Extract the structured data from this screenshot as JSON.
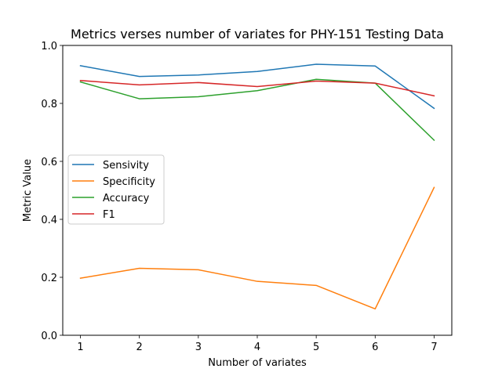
{
  "chart_data": {
    "type": "line",
    "title": "Metrics verses number of variates for PHY-151 Testing Data",
    "xlabel": "Number of variates",
    "ylabel": "Metric Value",
    "x": [
      1,
      2,
      3,
      4,
      5,
      6,
      7
    ],
    "xlim": [
      0.7,
      7.3
    ],
    "ylim": [
      0.0,
      1.0
    ],
    "xticks": [
      1,
      2,
      3,
      4,
      5,
      6,
      7
    ],
    "yticks": [
      0.0,
      0.2,
      0.4,
      0.6,
      0.8,
      1.0
    ],
    "ytick_labels": [
      "0.0",
      "0.2",
      "0.4",
      "0.6",
      "0.8",
      "1.0"
    ],
    "grid": false,
    "legend_position": "center-left",
    "series": [
      {
        "name": "Sensivity",
        "color": "#1f77b4",
        "values": [
          0.93,
          0.893,
          0.898,
          0.91,
          0.935,
          0.929,
          0.783
        ]
      },
      {
        "name": "Specificity",
        "color": "#ff7f0e",
        "values": [
          0.197,
          0.231,
          0.226,
          0.186,
          0.172,
          0.091,
          0.51
        ]
      },
      {
        "name": "Accuracy",
        "color": "#2ca02c",
        "values": [
          0.874,
          0.816,
          0.823,
          0.844,
          0.883,
          0.87,
          0.673
        ]
      },
      {
        "name": "F1",
        "color": "#d62728",
        "values": [
          0.879,
          0.864,
          0.872,
          0.858,
          0.877,
          0.87,
          0.826
        ]
      }
    ]
  }
}
